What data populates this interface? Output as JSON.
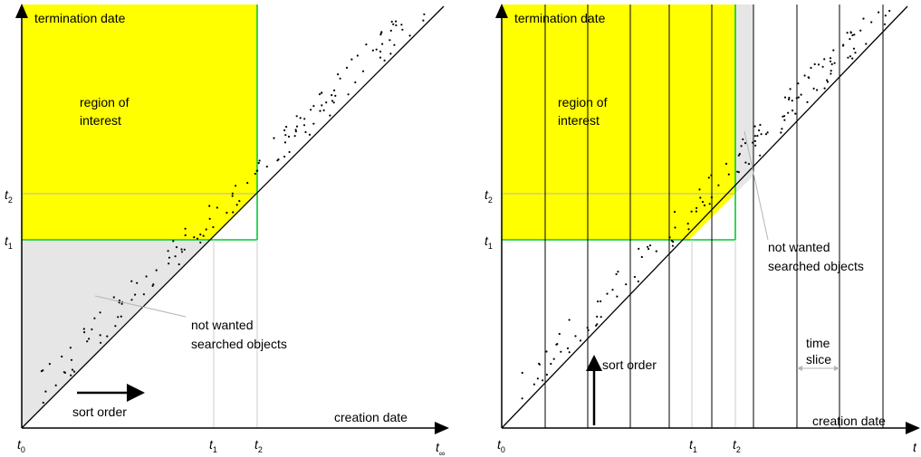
{
  "left": {
    "y_axis_label": "termination date",
    "x_axis_label": "creation date",
    "region_label_line1": "region of",
    "region_label_line2": "interest",
    "not_wanted_line1": "not wanted",
    "not_wanted_line2": "searched objects",
    "sort_order_label": "sort order",
    "t0": "t",
    "t0_sub": "0",
    "t1": "t",
    "t1_sub": "1",
    "t2": "t",
    "t2_sub": "2",
    "t_inf": "t",
    "t_inf_sub": "∞"
  },
  "right": {
    "y_axis_label": "termination date",
    "x_axis_label": "creation date",
    "region_label_line1": "region of",
    "region_label_line2": "interest",
    "not_wanted_line1": "not wanted",
    "not_wanted_line2": "searched objects",
    "sort_order_label": "sort order",
    "time_slice_line1": "time",
    "time_slice_line2": "slice",
    "t0": "t",
    "t0_sub": "0",
    "t1": "t",
    "t1_sub": "1",
    "t2": "t",
    "t2_sub": "2",
    "t_inf": "t"
  },
  "colors": {
    "region": "#ffff00",
    "boundary": "#00cc33",
    "shaded": "#e6e6e6",
    "guide": "#b5b5b5"
  }
}
